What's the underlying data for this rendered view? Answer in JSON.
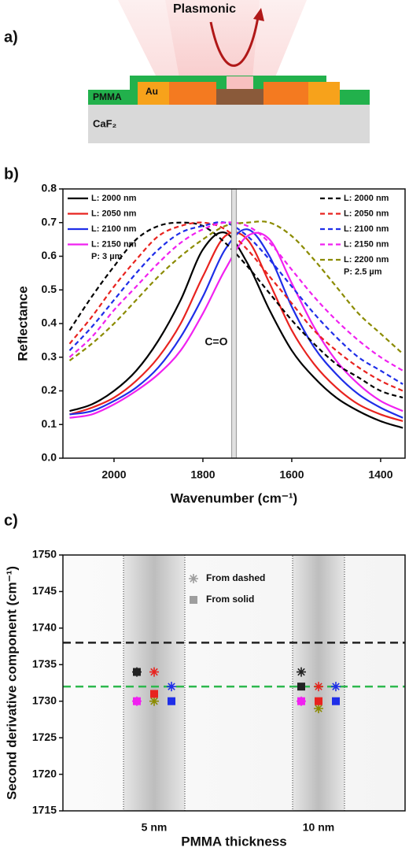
{
  "panel_a": {
    "label": "a)",
    "title": "Plasmonic",
    "labels": [
      "PMMA",
      "Au",
      "CaF₂"
    ]
  },
  "chart_data": [
    {
      "type": "line",
      "panel_label": "b)",
      "xlabel": "Wavenumber (cm⁻¹)",
      "ylabel": "Reflectance",
      "x": [
        2100,
        2050,
        2000,
        1950,
        1900,
        1850,
        1800,
        1750,
        1700,
        1650,
        1600,
        1550,
        1500,
        1450,
        1400,
        1350
      ],
      "xlim": [
        2115,
        1345
      ],
      "xticks": [
        2000,
        1800,
        1600,
        1400
      ],
      "ylim": [
        0,
        0.8
      ],
      "yticks": [
        {
          "value": 0,
          "label": "0.0"
        },
        0.1,
        0.2,
        0.3,
        0.4,
        0.5,
        0.6,
        0.7,
        0.8
      ],
      "series": [
        {
          "name": "L: 2000 nm",
          "color": "#000000",
          "linestyle": "solid",
          "values": [
            0.14,
            0.16,
            0.2,
            0.26,
            0.35,
            0.47,
            0.62,
            0.67,
            0.58,
            0.44,
            0.32,
            0.24,
            0.18,
            0.14,
            0.11,
            0.09
          ]
        },
        {
          "name": "L: 2050 nm",
          "color": "#e8231f",
          "linestyle": "solid",
          "values": [
            0.13,
            0.15,
            0.18,
            0.23,
            0.3,
            0.4,
            0.54,
            0.66,
            0.65,
            0.52,
            0.38,
            0.28,
            0.21,
            0.16,
            0.13,
            0.11
          ]
        },
        {
          "name": "L: 2100 nm",
          "color": "#1f2ee8",
          "linestyle": "solid",
          "values": [
            0.13,
            0.14,
            0.17,
            0.21,
            0.27,
            0.36,
            0.48,
            0.62,
            0.68,
            0.6,
            0.45,
            0.33,
            0.25,
            0.19,
            0.15,
            0.12
          ]
        },
        {
          "name": "L: 2150 nm",
          "color": "#f021f0",
          "linestyle": "solid",
          "values": [
            0.12,
            0.13,
            0.16,
            0.2,
            0.25,
            0.32,
            0.43,
            0.56,
            0.66,
            0.65,
            0.52,
            0.39,
            0.29,
            0.22,
            0.17,
            0.14
          ]
        },
        {
          "name": "L: 2000 nm",
          "color": "#000000",
          "linestyle": "dashed",
          "values": [
            0.38,
            0.48,
            0.57,
            0.65,
            0.69,
            0.7,
            0.69,
            0.64,
            0.57,
            0.49,
            0.41,
            0.34,
            0.28,
            0.24,
            0.2,
            0.18
          ]
        },
        {
          "name": "L: 2050 nm",
          "color": "#e8231f",
          "linestyle": "dashed",
          "values": [
            0.34,
            0.42,
            0.51,
            0.59,
            0.66,
            0.69,
            0.7,
            0.68,
            0.62,
            0.54,
            0.46,
            0.38,
            0.32,
            0.27,
            0.23,
            0.2
          ]
        },
        {
          "name": "L: 2100 nm",
          "color": "#1f2ee8",
          "linestyle": "dashed",
          "values": [
            0.32,
            0.39,
            0.47,
            0.55,
            0.62,
            0.67,
            0.69,
            0.7,
            0.66,
            0.59,
            0.51,
            0.43,
            0.36,
            0.3,
            0.26,
            0.22
          ]
        },
        {
          "name": "L: 2150 nm",
          "color": "#f021f0",
          "linestyle": "dashed",
          "values": [
            0.3,
            0.36,
            0.44,
            0.51,
            0.58,
            0.64,
            0.68,
            0.7,
            0.69,
            0.64,
            0.56,
            0.48,
            0.41,
            0.35,
            0.3,
            0.26
          ]
        },
        {
          "name": "L: 2200 nm",
          "color": "#8b8b00",
          "linestyle": "dashed",
          "values": [
            0.29,
            0.34,
            0.4,
            0.47,
            0.54,
            0.6,
            0.65,
            0.69,
            0.7,
            0.7,
            0.66,
            0.59,
            0.51,
            0.43,
            0.37,
            0.31
          ]
        }
      ],
      "legend_notes": {
        "solid": "P: 3 µm",
        "dashed": "P: 2.5 µm"
      },
      "band": {
        "label": "C=O",
        "value": 1730,
        "color": "#a0a0a0"
      }
    },
    {
      "type": "scatter",
      "panel_label": "c)",
      "xlabel": "PMMA thickness",
      "ylabel": "Second derivative component (cm⁻¹)",
      "categories": [
        "5 nm",
        "10 nm"
      ],
      "ylim": [
        1715,
        1750
      ],
      "yticks": [
        1715,
        1720,
        1725,
        1730,
        1735,
        1740,
        1745,
        1750
      ],
      "reference_lines": [
        {
          "value": 1738,
          "color": "#222222"
        },
        {
          "value": 1732,
          "color": "#2db84d"
        }
      ],
      "groups": [
        {
          "name": "From dashed",
          "marker": "asterisk",
          "color": "#9e9e9e",
          "series": [
            {
              "color": "#222222",
              "values": [
                1734,
                1734
              ]
            },
            {
              "color": "#e8231f",
              "values": [
                1734,
                1732
              ]
            },
            {
              "color": "#1f2ee8",
              "values": [
                1732,
                1732
              ]
            },
            {
              "color": "#f021f0",
              "values": [
                1730,
                1730
              ]
            },
            {
              "color": "#8b8b00",
              "values": [
                1730,
                1729
              ]
            }
          ]
        },
        {
          "name": "From solid",
          "marker": "square",
          "color": "#9e9e9e",
          "series": [
            {
              "color": "#222222",
              "values": [
                1734,
                1732
              ]
            },
            {
              "color": "#e8231f",
              "values": [
                1731,
                1730
              ]
            },
            {
              "color": "#1f2ee8",
              "values": [
                1730,
                1730
              ]
            },
            {
              "color": "#f021f0",
              "values": [
                1730,
                1730
              ]
            }
          ]
        }
      ]
    }
  ]
}
